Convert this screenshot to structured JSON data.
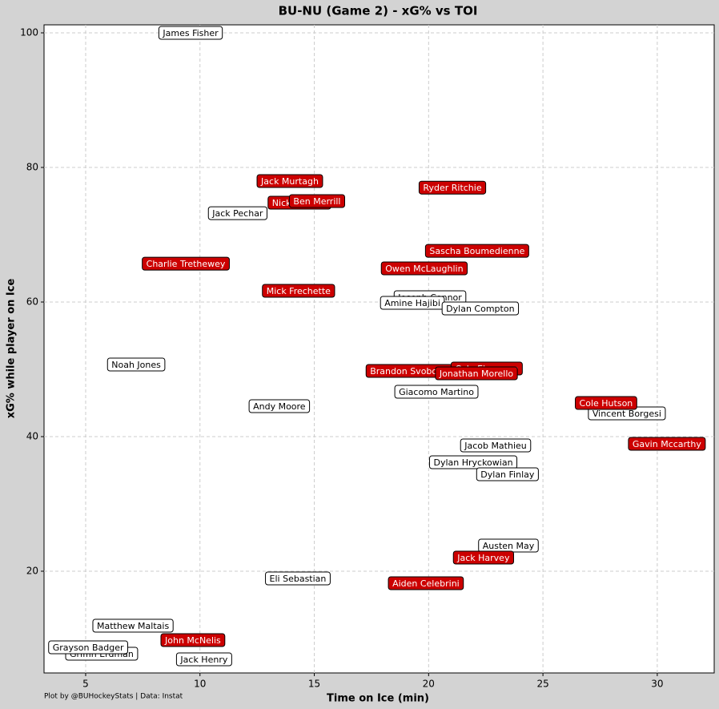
{
  "chart_data": {
    "type": "scatter",
    "title": "BU-NU (Game 2) - xG% vs TOI",
    "x_label": "Time on Ice (min)",
    "y_label": "xG% while player on Ice",
    "footer": "Plot by @BUHockeyStats | Data: Instat",
    "xlim": [
      3.18,
      32.49
    ],
    "ylim": [
      4.88,
      101.19
    ],
    "xticks": [
      5,
      10,
      15,
      20,
      25,
      30
    ],
    "yticks": [
      20,
      40,
      60,
      80,
      100
    ],
    "grid": true,
    "series": [
      {
        "color": "#ffffff",
        "text_color": "#000000",
        "labels": [
          "James Fisher",
          "Jack Pechar",
          "Joseph Connor",
          "Amine Hajibi",
          "Dylan Compton",
          "Noah Jones",
          "Giacomo Martino",
          "Andy Moore",
          "Vincent Borgesi",
          "Jacob Mathieu",
          "Dylan Hryckowian",
          "Dylan Finlay",
          "Austen May",
          "Eli Sebastian",
          "Matthew Maltais",
          "Griffin Erdman",
          "Grayson Badger",
          "Jack Henry"
        ],
        "x": [
          9.59,
          11.65,
          20.06,
          19.29,
          22.26,
          7.21,
          20.34,
          13.47,
          28.67,
          22.93,
          21.95,
          23.45,
          23.49,
          14.28,
          7.07,
          5.7,
          5.11,
          10.18
        ],
        "values": [
          100.0,
          73.2,
          60.71,
          59.88,
          59.05,
          50.71,
          46.67,
          44.52,
          43.45,
          38.69,
          36.19,
          34.4,
          23.81,
          18.93,
          11.9,
          7.74,
          8.69,
          6.9
        ]
      },
      {
        "color": "#cc0000",
        "text_color": "#ffffff",
        "labels": [
          "Jack Murtagh",
          "Nick Poisson",
          "Ben Merrill",
          "Ryder Ritchie",
          "Sascha Boumedienne",
          "Charlie Trethewey",
          "Owen McLaughlin",
          "Mick Frechette",
          "Brandon Svoboda",
          "Cole Eiserman",
          "Jonathan Morello",
          "Cole Hutson",
          "Gavin Mccarthy",
          "Jack Harvey",
          "Aiden Celebrini",
          "John McNelis"
        ],
        "x": [
          13.93,
          14.35,
          15.12,
          21.04,
          22.12,
          9.38,
          19.81,
          14.31,
          19.15,
          22.54,
          22.09,
          27.76,
          30.42,
          22.4,
          19.88,
          9.69
        ],
        "values": [
          77.98,
          74.76,
          75.0,
          77.0,
          67.6,
          65.7,
          65.0,
          61.67,
          49.76,
          50.12,
          49.4,
          45.0,
          38.93,
          22.02,
          18.21,
          9.76
        ]
      }
    ]
  }
}
